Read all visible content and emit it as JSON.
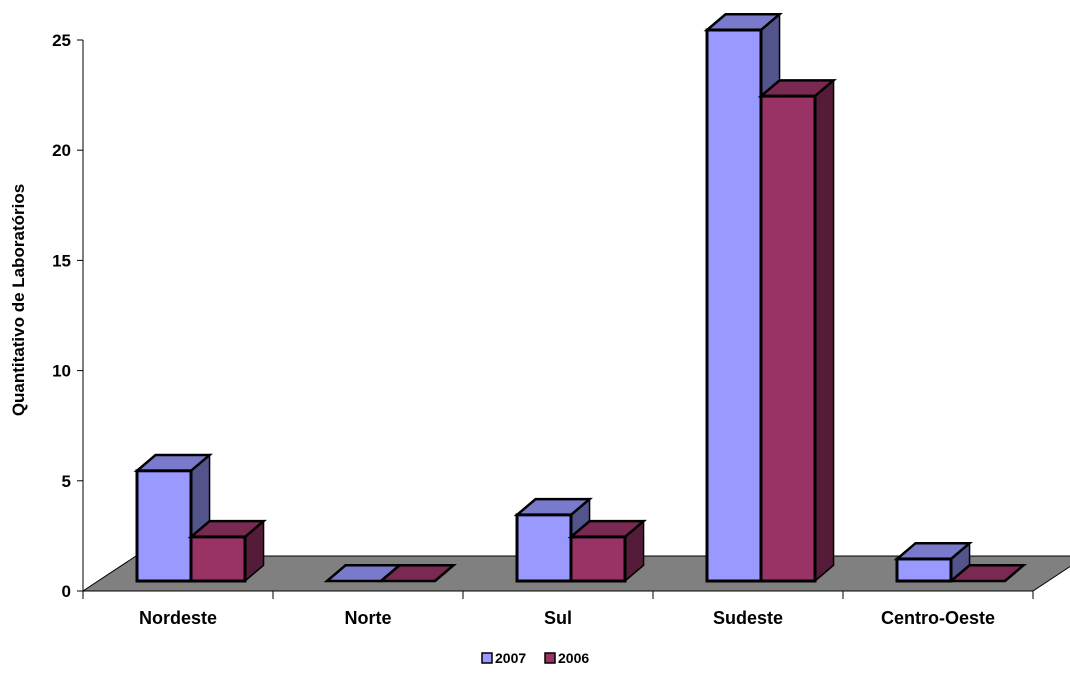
{
  "chart_data": {
    "type": "bar",
    "style": "3d-clustered-column",
    "categories": [
      "Nordeste",
      "Norte",
      "Sul",
      "Sudeste",
      "Centro-Oeste"
    ],
    "series": [
      {
        "name": "2007",
        "values": [
          5,
          0,
          3,
          25,
          1
        ],
        "color": "#9999ff"
      },
      {
        "name": "2006",
        "values": [
          2,
          0,
          2,
          22,
          0
        ],
        "color": "#993366"
      }
    ],
    "ylabel": "Quantitativo de Laboratórios",
    "xlabel": "",
    "ylim": [
      0,
      25
    ],
    "yticks": [
      "0",
      "5",
      "10",
      "15",
      "20",
      "25"
    ],
    "grid": false,
    "legend_position": "bottom",
    "floor_color": "#808080"
  }
}
